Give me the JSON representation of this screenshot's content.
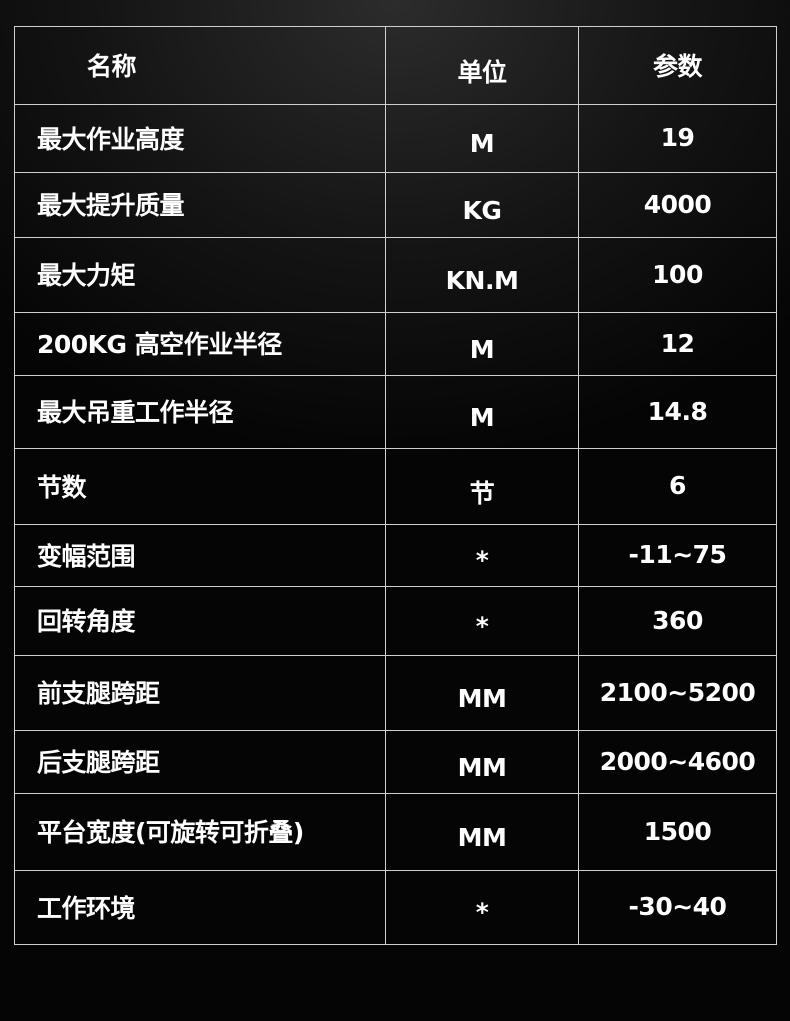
{
  "table": {
    "header": [
      "名称",
      "单位",
      "参数"
    ],
    "rows": [
      [
        "最大作业高度",
        "M",
        "19"
      ],
      [
        "最大提升质量",
        "KG",
        "4000"
      ],
      [
        "最大力矩",
        "KN.M",
        "100"
      ],
      [
        "200KG 高空作业半径",
        "M",
        "12"
      ],
      [
        "最大吊重工作半径",
        "M",
        "14.8"
      ],
      [
        "节数",
        "节",
        "6"
      ],
      [
        "变幅范围",
        "*",
        "-11~75"
      ],
      [
        "回转角度",
        "*",
        "360"
      ],
      [
        "前支腿跨距",
        "MM",
        "2100~5200"
      ],
      [
        "后支腿跨距",
        "MM",
        "2000~4600"
      ],
      [
        "平台宽度(可旋转可折叠)",
        "MM",
        "1500"
      ],
      [
        "工作环境",
        "*",
        "-30~40"
      ]
    ]
  }
}
